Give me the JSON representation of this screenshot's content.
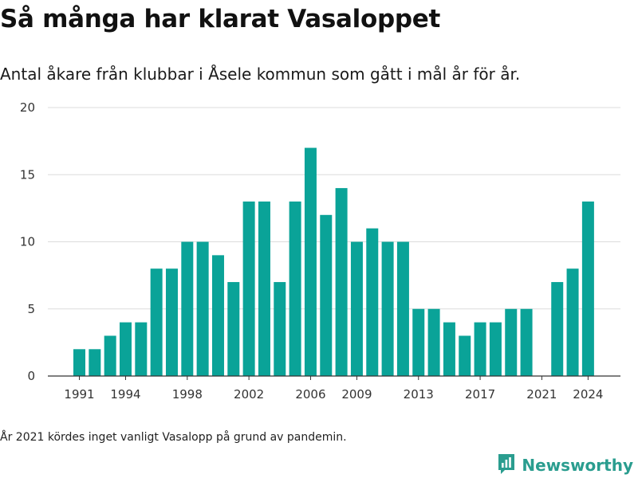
{
  "header": {
    "title": "Så många har klarat Vasaloppet",
    "subtitle": "Antal åkare från klubbar i Åsele kommun som gått i mål år för år."
  },
  "footnote": "År 2021 kördes inget vanligt Vasalopp på grund av pandemin.",
  "brand": {
    "name": "Newsworthy",
    "color": "#2a9d8f"
  },
  "chart_data": {
    "type": "bar",
    "title": "Så många har klarat Vasaloppet",
    "subtitle": "Antal åkare från klubbar i Åsele kommun som gått i mål år för år.",
    "bar_color": "#0aa398",
    "grid": true,
    "ylim": [
      0,
      20
    ],
    "y_ticks": [
      0,
      5,
      10,
      15,
      20
    ],
    "x_ticks": [
      "1991",
      "1994",
      "1998",
      "2002",
      "2006",
      "2009",
      "2013",
      "2017",
      "2021",
      "2024"
    ],
    "categories": [
      "1991",
      "1992",
      "1993",
      "1994",
      "1995",
      "1996",
      "1997",
      "1998",
      "1999",
      "2000",
      "2001",
      "2002",
      "2003",
      "2004",
      "2005",
      "2006",
      "2007",
      "2008",
      "2009",
      "2010",
      "2011",
      "2012",
      "2013",
      "2014",
      "2015",
      "2016",
      "2017",
      "2018",
      "2019",
      "2020",
      "2021",
      "2022",
      "2023",
      "2024"
    ],
    "values": [
      2,
      2,
      3,
      4,
      4,
      8,
      8,
      10,
      10,
      9,
      7,
      13,
      13,
      7,
      13,
      17,
      12,
      14,
      10,
      11,
      10,
      10,
      5,
      5,
      4,
      3,
      4,
      4,
      5,
      5,
      0,
      7,
      8,
      13
    ]
  }
}
